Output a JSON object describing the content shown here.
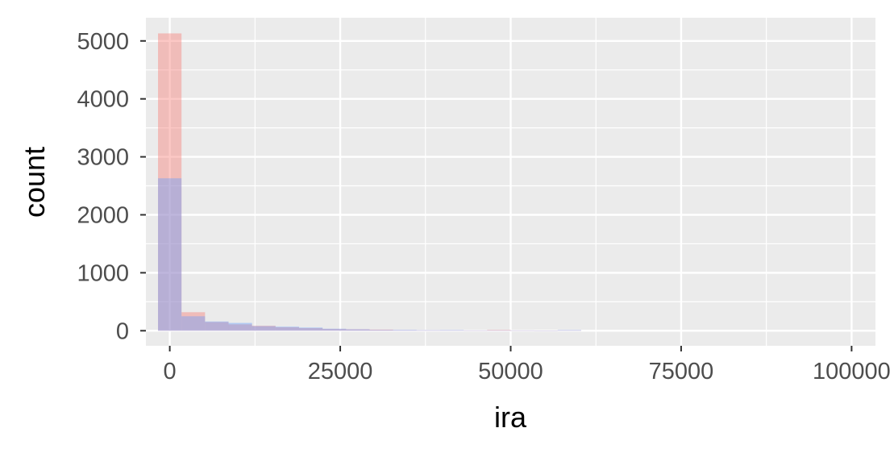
{
  "chart_data": {
    "type": "bar",
    "xlabel": "ira",
    "ylabel": "count",
    "xlim": [
      -3500,
      103500
    ],
    "ylim": [
      -260,
      5400
    ],
    "x_ticks": [
      0,
      25000,
      50000,
      75000,
      100000
    ],
    "x_tick_labels": [
      "0",
      "25000",
      "50000",
      "75000",
      "100000"
    ],
    "y_ticks": [
      0,
      1000,
      2000,
      3000,
      4000,
      5000
    ],
    "y_tick_labels": [
      "0",
      "1000",
      "2000",
      "3000",
      "4000",
      "5000"
    ],
    "grid": true,
    "bin_width": 3448,
    "series": [
      {
        "color": "#F8766D",
        "bins": [
          {
            "x": 0,
            "count": 5130
          },
          {
            "x": 3448,
            "count": 320
          },
          {
            "x": 6897,
            "count": 150
          },
          {
            "x": 10345,
            "count": 110
          },
          {
            "x": 13793,
            "count": 85
          },
          {
            "x": 17241,
            "count": 60
          },
          {
            "x": 20690,
            "count": 45
          },
          {
            "x": 24138,
            "count": 30
          },
          {
            "x": 27586,
            "count": 25
          },
          {
            "x": 31034,
            "count": 20
          },
          {
            "x": 34483,
            "count": 10
          },
          {
            "x": 37931,
            "count": 8
          },
          {
            "x": 41379,
            "count": 8
          },
          {
            "x": 44828,
            "count": 5
          },
          {
            "x": 48276,
            "count": 15
          },
          {
            "x": 51724,
            "count": 5
          },
          {
            "x": 55172,
            "count": 3
          },
          {
            "x": 58621,
            "count": 8
          }
        ]
      },
      {
        "color": "#619CFF",
        "bins": [
          {
            "x": 0,
            "count": 2630
          },
          {
            "x": 3448,
            "count": 250
          },
          {
            "x": 6897,
            "count": 160
          },
          {
            "x": 10345,
            "count": 135
          },
          {
            "x": 13793,
            "count": 80
          },
          {
            "x": 17241,
            "count": 70
          },
          {
            "x": 20690,
            "count": 55
          },
          {
            "x": 24138,
            "count": 35
          },
          {
            "x": 27586,
            "count": 25
          },
          {
            "x": 31034,
            "count": 15
          },
          {
            "x": 34483,
            "count": 15
          },
          {
            "x": 37931,
            "count": 10
          },
          {
            "x": 41379,
            "count": 12
          },
          {
            "x": 44828,
            "count": 6
          },
          {
            "x": 48276,
            "count": 8
          },
          {
            "x": 51724,
            "count": 6
          },
          {
            "x": 55172,
            "count": 4
          },
          {
            "x": 58621,
            "count": 12
          }
        ]
      }
    ]
  }
}
